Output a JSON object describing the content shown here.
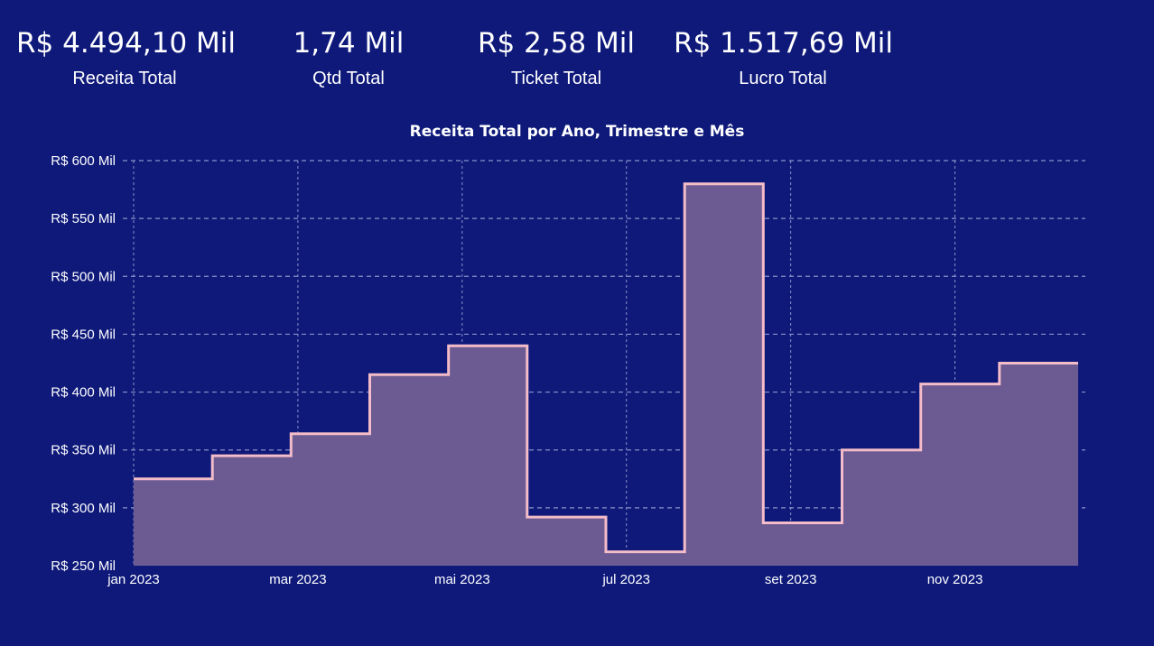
{
  "kpis": [
    {
      "value": "R$ 4.494,10 Mil",
      "label": "Receita Total"
    },
    {
      "value": "1,74 Mil",
      "label": "Qtd Total"
    },
    {
      "value": "R$ 2,58 Mil",
      "label": "Ticket Total"
    },
    {
      "value": "R$ 1.517,69 Mil",
      "label": "Lucro Total"
    }
  ],
  "colors": {
    "background": "#0E197A",
    "line": "#F4BCC8",
    "fill": "#6B5B92",
    "grid": "#8B92C8"
  },
  "chart_data": {
    "type": "area",
    "step": true,
    "title": "Receita Total por Ano, Trimestre e Mês",
    "xlabel": "",
    "ylabel": "",
    "x": [
      "jan 2023",
      "fev 2023",
      "mar 2023",
      "abr 2023",
      "mai 2023",
      "jun 2023",
      "jul 2023",
      "ago 2023",
      "set 2023",
      "out 2023",
      "nov 2023",
      "dez 2023"
    ],
    "x_tick_labels": [
      "jan 2023",
      "mar 2023",
      "mai 2023",
      "jul 2023",
      "set 2023",
      "nov 2023"
    ],
    "series": [
      {
        "values": [
          325,
          345,
          364,
          415,
          440,
          292,
          262,
          580,
          287,
          350,
          407,
          425
        ]
      }
    ],
    "ylim": [
      250,
      600
    ],
    "y_ticks": [
      250,
      300,
      350,
      400,
      450,
      500,
      550,
      600
    ],
    "y_tick_labels": [
      "R$ 250 Mil",
      "R$ 300 Mil",
      "R$ 350 Mil",
      "R$ 400 Mil",
      "R$ 450 Mil",
      "R$ 500 Mil",
      "R$ 550 Mil",
      "R$ 600 Mil"
    ],
    "grid": true,
    "legend": "none"
  }
}
